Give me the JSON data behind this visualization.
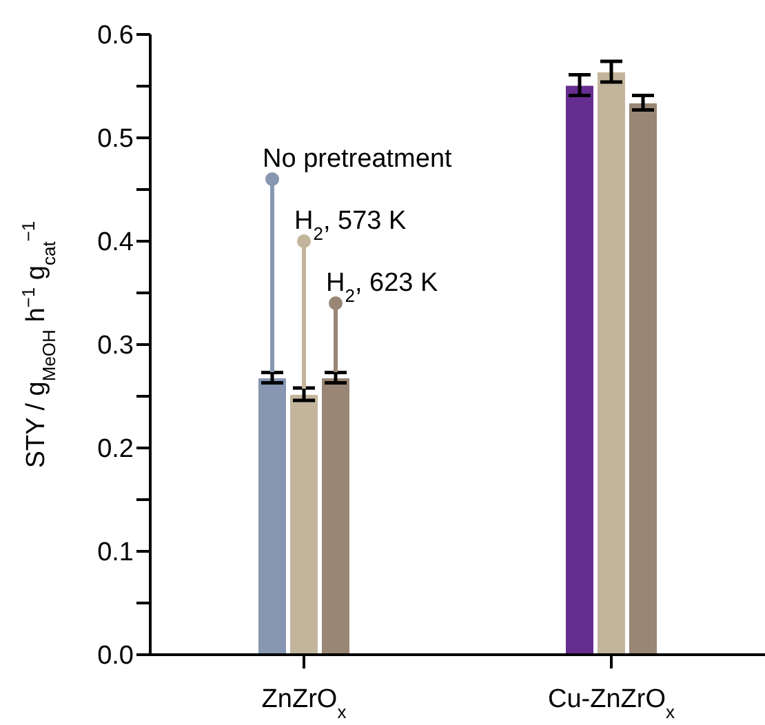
{
  "chart_data": {
    "type": "bar",
    "ylabel": "STY / g$_{MeOH}$ h$^{−1}$ g$_{cat}$$^{−1}$",
    "categories": [
      "ZnZrO$_{x}$",
      "Cu-ZnZrO$_{x}$"
    ],
    "series": [
      {
        "colors": [
          "#8797b2",
          "#662d91"
        ],
        "values": [
          0.268,
          0.551
        ],
        "errors": [
          0.005,
          0.01
        ]
      },
      {
        "colors": [
          "#c2b59b",
          "#c2b59b"
        ],
        "values": [
          0.252,
          0.564
        ],
        "errors": [
          0.006,
          0.01
        ]
      },
      {
        "colors": [
          "#998675",
          "#998675"
        ],
        "values": [
          0.268,
          0.534
        ],
        "errors": [
          0.005,
          0.007
        ]
      },
      {
        "type": "lollipop",
        "name": "No pretreatment",
        "color": "#8797b2",
        "values": [
          0.46,
          null
        ]
      },
      {
        "type": "lollipop",
        "name": "H$_{2}$, 573 K",
        "color": "#c2b59b",
        "values": [
          0.4,
          null
        ]
      },
      {
        "type": "lollipop",
        "name": "H$_{2}$, 623 K",
        "color": "#998675",
        "values": [
          0.34,
          null
        ]
      }
    ],
    "ylim": [
      0,
      0.6
    ],
    "yticks": [
      {
        "value": 0,
        "label": "0.0"
      },
      {
        "value": 0.05,
        "label": null
      },
      0.1,
      {
        "value": 0.15,
        "label": null
      },
      0.2,
      {
        "value": 0.25,
        "label": null
      },
      0.3,
      {
        "value": 0.35,
        "label": null
      },
      0.4,
      {
        "value": 0.45,
        "label": null
      },
      0.5,
      {
        "value": 0.55,
        "label": null
      },
      0.6
    ],
    "grid": false,
    "legend": false
  }
}
